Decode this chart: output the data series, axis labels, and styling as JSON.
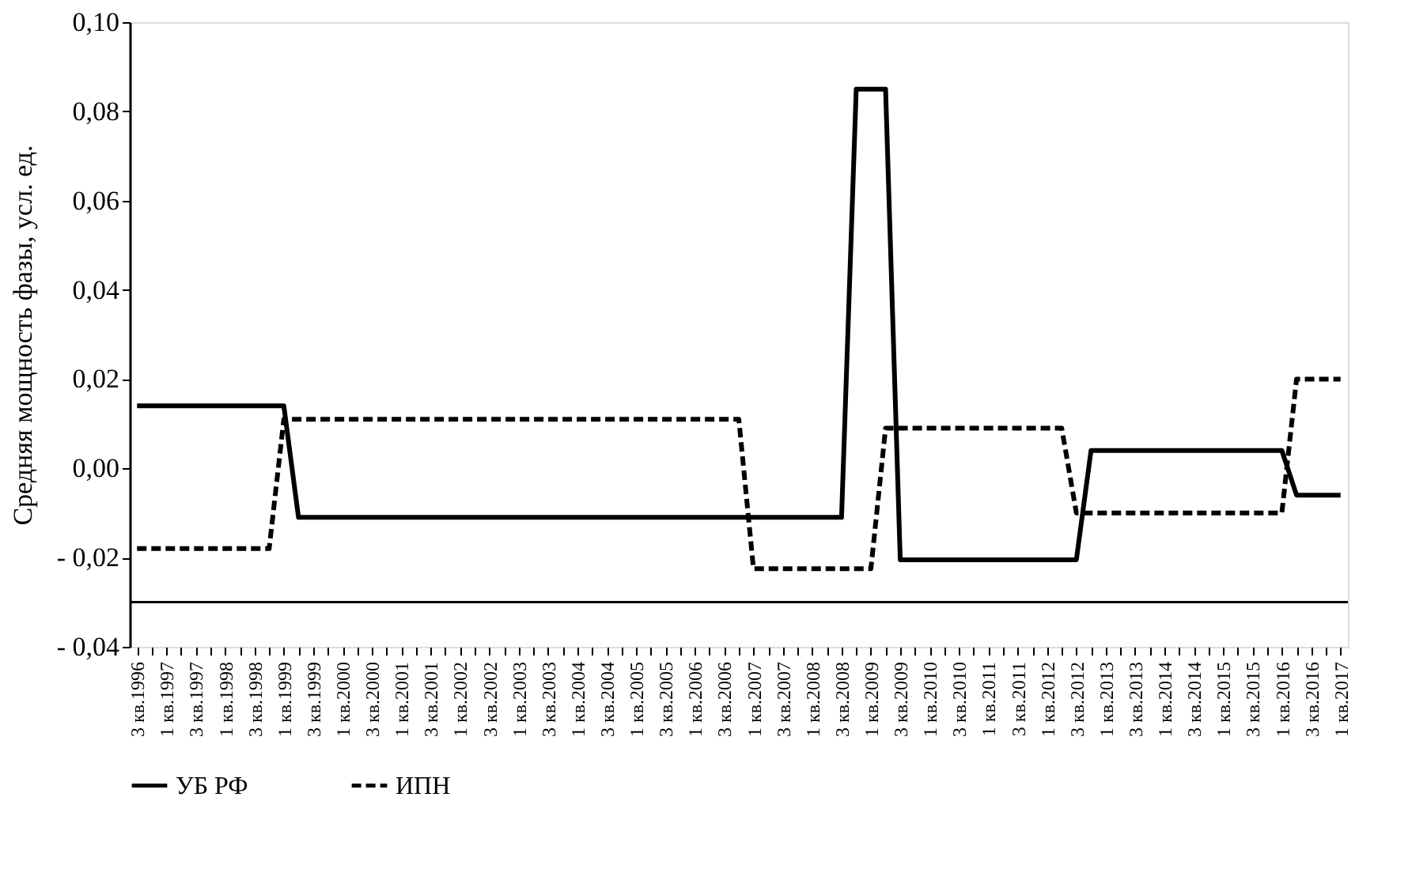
{
  "chart_data": {
    "type": "line",
    "ylabel": "Средняя мощность фазы,  усл. ед.",
    "categories": [
      "3 кв.1996",
      null,
      "1 кв.1997",
      null,
      "3 кв.1997",
      null,
      "1 кв.1998",
      null,
      "3 кв.1998",
      null,
      "1 кв.1999",
      null,
      "3 кв.1999",
      null,
      "1 кв.2000",
      null,
      "3 кв.2000",
      null,
      "1 кв.2001",
      null,
      "3 кв.2001",
      null,
      "1 кв.2002",
      null,
      "3 кв.2002",
      null,
      "1 кв.2003",
      null,
      "3 кв.2003",
      null,
      "1 кв.2004",
      null,
      "3 кв.2004",
      null,
      "1 кв.2005",
      null,
      "3 кв.2005",
      null,
      "1 кв.2006",
      null,
      "3 кв.2006",
      null,
      "1 кв.2007",
      null,
      "3 кв.2007",
      null,
      "1 кв.2008",
      null,
      "3 кв.2008",
      null,
      "1 кв.2009",
      null,
      "3 кв.2009",
      null,
      "1 кв.2010",
      null,
      "3 кв.2010",
      null,
      "1 кв.2011",
      null,
      "3 кв.2011",
      null,
      "1 кв.2012",
      null,
      "3 кв.2012",
      null,
      "1 кв.2013",
      null,
      "3 кв.2013",
      null,
      "1 кв.2014",
      null,
      "3 кв.2014",
      null,
      "1 кв.2015",
      null,
      "3 кв.2015",
      null,
      "1 кв.2016",
      null,
      "3 кв.2016",
      null,
      "1 кв.2017"
    ],
    "series": [
      {
        "name": "УБ РФ",
        "color": "#000000",
        "line_style": "solid",
        "values": [
          0.014,
          0.014,
          0.014,
          0.014,
          0.014,
          0.014,
          0.014,
          0.014,
          0.014,
          0.014,
          0.014,
          -0.011,
          -0.011,
          -0.011,
          -0.011,
          -0.011,
          -0.011,
          -0.011,
          -0.011,
          -0.011,
          -0.011,
          -0.011,
          -0.011,
          -0.011,
          -0.011,
          -0.011,
          -0.011,
          -0.011,
          -0.011,
          -0.011,
          -0.011,
          -0.011,
          -0.011,
          -0.011,
          -0.011,
          -0.011,
          -0.011,
          -0.011,
          -0.011,
          -0.011,
          -0.011,
          -0.011,
          -0.011,
          -0.011,
          -0.011,
          -0.011,
          -0.011,
          -0.011,
          -0.011,
          0.085,
          0.085,
          0.085,
          -0.0205,
          -0.0205,
          -0.0205,
          -0.0205,
          -0.0205,
          -0.0205,
          -0.0205,
          -0.0205,
          -0.0205,
          -0.0205,
          -0.0205,
          -0.0205,
          -0.0205,
          0.004,
          0.004,
          0.004,
          0.004,
          0.004,
          0.004,
          0.004,
          0.004,
          0.004,
          0.004,
          0.004,
          0.004,
          0.004,
          0.004,
          -0.006,
          -0.006,
          -0.006,
          -0.006
        ]
      },
      {
        "name": "ИПН",
        "color": "#000000",
        "line_style": "dashed",
        "values": [
          -0.018,
          -0.018,
          -0.018,
          -0.018,
          -0.018,
          -0.018,
          -0.018,
          -0.018,
          -0.018,
          -0.018,
          0.011,
          0.011,
          0.011,
          0.011,
          0.011,
          0.011,
          0.011,
          0.011,
          0.011,
          0.011,
          0.011,
          0.011,
          0.011,
          0.011,
          0.011,
          0.011,
          0.011,
          0.011,
          0.011,
          0.011,
          0.011,
          0.011,
          0.011,
          0.011,
          0.011,
          0.011,
          0.011,
          0.011,
          0.011,
          0.011,
          0.011,
          0.011,
          -0.0225,
          -0.0225,
          -0.0225,
          -0.0225,
          -0.0225,
          -0.0225,
          -0.0225,
          -0.0225,
          -0.0225,
          0.009,
          0.009,
          0.009,
          0.009,
          0.009,
          0.009,
          0.009,
          0.009,
          0.009,
          0.009,
          0.009,
          0.009,
          0.009,
          -0.01,
          -0.01,
          -0.01,
          -0.01,
          -0.01,
          -0.01,
          -0.01,
          -0.01,
          -0.01,
          -0.01,
          -0.01,
          -0.01,
          -0.01,
          -0.01,
          -0.01,
          0.02,
          0.02,
          0.02,
          0.02
        ]
      }
    ],
    "ylim": [
      -0.04,
      0.1
    ],
    "yticks": [
      {
        "value": -0.04,
        "label": "- 0,04"
      },
      {
        "value": -0.02,
        "label": "- 0,02"
      },
      {
        "value": 0.0,
        "label": "0,00"
      },
      {
        "value": 0.02,
        "label": "0,02"
      },
      {
        "value": 0.04,
        "label": "0,04"
      },
      {
        "value": 0.06,
        "label": "0,06"
      },
      {
        "value": 0.08,
        "label": "0,08"
      },
      {
        "value": 0.1,
        "label": "0,10"
      }
    ],
    "ref_lines": [
      {
        "axis": "y",
        "value": -0.03,
        "label": null,
        "color": "#000000",
        "line_style": "solid"
      }
    ],
    "grid": false,
    "legend": "bottom",
    "marker": "none"
  }
}
